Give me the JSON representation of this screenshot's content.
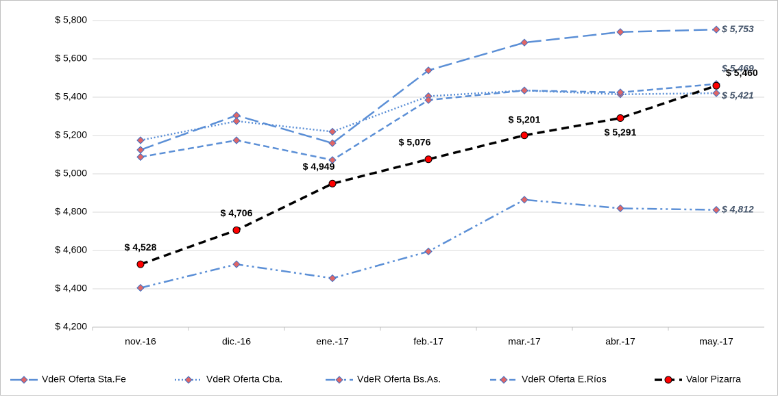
{
  "chart_data": {
    "type": "line",
    "categories": [
      "nov.-16",
      "dic.-16",
      "ene.-17",
      "feb.-17",
      "mar.-17",
      "abr.-17",
      "may.-17"
    ],
    "ylim": [
      4200,
      5800
    ],
    "yticks": [
      {
        "value": 4200,
        "label": "$ 4,200"
      },
      {
        "value": 4400,
        "label": "$ 4,400"
      },
      {
        "value": 4600,
        "label": "$ 4,600"
      },
      {
        "value": 4800,
        "label": "$ 4,800"
      },
      {
        "value": 5000,
        "label": "$ 5,000"
      },
      {
        "value": 5200,
        "label": "$ 5,200"
      },
      {
        "value": 5400,
        "label": "$ 5,400"
      },
      {
        "value": 5600,
        "label": "$ 5,600"
      },
      {
        "value": 5800,
        "label": "$ 5,800"
      }
    ],
    "grid": true,
    "legend": "bottom",
    "series": [
      {
        "name": "VdeR Oferta Sta.Fe",
        "color": "#5b8fd6",
        "values": [
          5125,
          5305,
          5160,
          5540,
          5685,
          5740,
          5753
        ],
        "value_labels": [
          null,
          null,
          null,
          null,
          null,
          null,
          "$ 5,753"
        ]
      },
      {
        "name": "VdeR Oferta Cba.",
        "color": "#5b8fd6",
        "values": [
          5175,
          5275,
          5220,
          5405,
          5435,
          5415,
          5421
        ],
        "value_labels": [
          null,
          null,
          null,
          null,
          null,
          null,
          "$ 5,421"
        ]
      },
      {
        "name": "VdeR Oferta Bs.As.",
        "color": "#5b8fd6",
        "values": [
          4405,
          4528,
          4455,
          4595,
          4865,
          4820,
          4812
        ],
        "value_labels": [
          null,
          null,
          null,
          null,
          null,
          null,
          "$ 4,812"
        ]
      },
      {
        "name": "VdeR Oferta E.Ríos",
        "color": "#5b8fd6",
        "values": [
          5088,
          5175,
          5072,
          5385,
          5435,
          5425,
          5469
        ],
        "value_labels": [
          null,
          null,
          null,
          null,
          null,
          null,
          "$ 5,469"
        ]
      },
      {
        "name": "Valor Pizarra",
        "color": "#000000",
        "values": [
          4528,
          4706,
          4949,
          5076,
          5201,
          5291,
          5460
        ],
        "value_labels": [
          "$ 4,528",
          "$ 4,706",
          "$ 4,949",
          "$ 5,076",
          "$ 5,201",
          "$ 5,291",
          "$ 5,460"
        ]
      }
    ]
  }
}
